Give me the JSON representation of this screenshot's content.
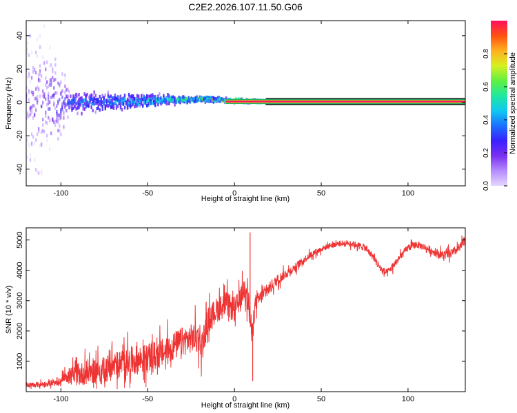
{
  "title": "C2E2.2026.107.11.50.G06",
  "colors": {
    "snr_line": "#ee3333",
    "frame": "#000000",
    "background": "#ffffff",
    "colormap": [
      "#e6d8ff",
      "#b48cff",
      "#7a30f0",
      "#3a20ff",
      "#1a70ff",
      "#10c8f0",
      "#20e8a0",
      "#60f040",
      "#d8f020",
      "#ffb020",
      "#ff5010",
      "#ff1060"
    ]
  },
  "chart_data": [
    {
      "type": "heatmap",
      "name": "spectrogram",
      "xlabel": "Height of straight line (km)",
      "ylabel": "Frequency (Hz)",
      "xlim": [
        -120,
        133
      ],
      "ylim": [
        -50,
        49
      ],
      "xticks": [
        -100,
        -50,
        0,
        50,
        100
      ],
      "yticks": [
        -40,
        -20,
        0,
        20,
        40
      ],
      "grid": false,
      "colorbar": {
        "label": "Normalized spectral amplitude",
        "range": [
          0,
          1
        ],
        "ticks": [
          "0.0",
          "0.2",
          "0.4",
          "0.6",
          "0.8"
        ]
      },
      "description_points": [
        {
          "x": -120,
          "f_center": 0,
          "f_spread": 49,
          "amp": 0.15
        },
        {
          "x": -95,
          "f_center": 0,
          "f_spread": 8,
          "amp": 0.35
        },
        {
          "x": -45,
          "f_center": 1,
          "f_spread": 5,
          "amp": 0.45
        },
        {
          "x": -20,
          "f_center": 2,
          "f_spread": 2,
          "amp": 0.55
        },
        {
          "x": 0,
          "f_center": 1,
          "f_spread": 1.5,
          "amp": 0.75
        },
        {
          "x": 20,
          "f_center": 0.5,
          "f_spread": 1,
          "amp": 0.95
        },
        {
          "x": 133,
          "f_center": 0.5,
          "f_spread": 1,
          "amp": 0.95
        }
      ]
    },
    {
      "type": "line",
      "name": "snr",
      "xlabel": "Height of straight line (km)",
      "ylabel": "SNR (10 * v/v)",
      "xlim": [
        -120,
        133
      ],
      "ylim": [
        0,
        5400
      ],
      "xticks": [
        -100,
        -50,
        0,
        50,
        100
      ],
      "yticks": [
        1000,
        2000,
        3000,
        4000,
        5000
      ],
      "grid": false,
      "series": [
        {
          "name": "SNR",
          "x": [
            -120,
            -110,
            -100,
            -98,
            -95,
            -90,
            -85,
            -80,
            -75,
            -70,
            -65,
            -60,
            -55,
            -50,
            -45,
            -40,
            -35,
            -30,
            -25,
            -20,
            -19,
            -15,
            -10,
            -5,
            0,
            3,
            5,
            7,
            8,
            9,
            10,
            11,
            12,
            15,
            20,
            25,
            30,
            35,
            40,
            45,
            50,
            55,
            60,
            65,
            70,
            75,
            80,
            82,
            85,
            88,
            90,
            95,
            100,
            105,
            110,
            115,
            120,
            125,
            130,
            133
          ],
          "values": [
            200,
            250,
            280,
            600,
            500,
            550,
            650,
            700,
            750,
            850,
            900,
            1000,
            1050,
            1100,
            1200,
            1300,
            1500,
            1650,
            1750,
            1800,
            1500,
            2400,
            2700,
            2900,
            2700,
            3000,
            3300,
            3600,
            2900,
            2500,
            1800,
            2400,
            2900,
            3100,
            3400,
            3700,
            3900,
            4100,
            4350,
            4550,
            4700,
            4820,
            4880,
            4900,
            4850,
            4750,
            4450,
            4250,
            4000,
            3900,
            4050,
            4400,
            4750,
            4850,
            4750,
            4600,
            4500,
            4550,
            4750,
            5000
          ],
          "noise_amplitude": [
            150,
            150,
            150,
            400,
            500,
            600,
            700,
            700,
            750,
            800,
            800,
            800,
            800,
            800,
            800,
            800,
            800,
            800,
            800,
            900,
            800,
            700,
            700,
            700,
            700,
            600,
            600,
            900,
            900,
            900,
            700,
            600,
            500,
            400,
            350,
            300,
            250,
            220,
            200,
            180,
            160,
            160,
            160,
            160,
            170,
            200,
            200,
            220,
            220,
            220,
            220,
            200,
            200,
            200,
            200,
            220,
            250,
            250,
            250,
            250
          ],
          "peaks": [
            {
              "x": 9,
              "y": 5250
            },
            {
              "x": 10.5,
              "y": 350
            }
          ]
        }
      ]
    }
  ]
}
